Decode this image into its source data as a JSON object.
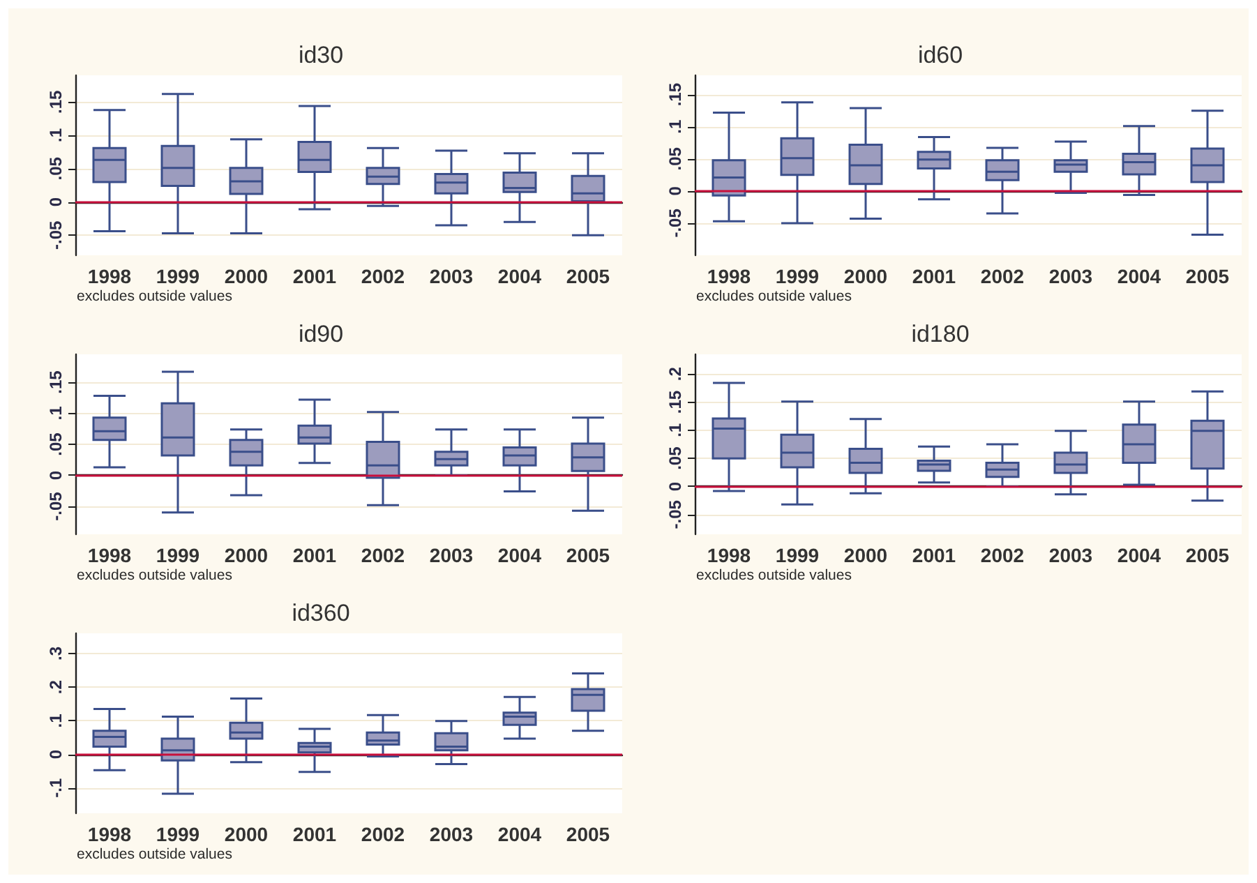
{
  "chart_data": [
    {
      "type": "box",
      "title": "id30",
      "categories": [
        "1998",
        "1999",
        "2000",
        "2001",
        "2002",
        "2003",
        "2004",
        "2005"
      ],
      "series": [
        {
          "color": "#9c9cbe",
          "boxes": [
            {
              "low": -0.044,
              "q1": 0.03,
              "median": 0.063,
              "q3": 0.081,
              "high": 0.138
            },
            {
              "low": -0.047,
              "q1": 0.024,
              "median": 0.051,
              "q3": 0.084,
              "high": 0.162
            },
            {
              "low": -0.047,
              "q1": 0.012,
              "median": 0.031,
              "q3": 0.051,
              "high": 0.094
            },
            {
              "low": -0.011,
              "q1": 0.045,
              "median": 0.063,
              "q3": 0.09,
              "high": 0.144
            },
            {
              "low": -0.006,
              "q1": 0.027,
              "median": 0.038,
              "q3": 0.051,
              "high": 0.081
            },
            {
              "low": -0.035,
              "q1": 0.013,
              "median": 0.029,
              "q3": 0.042,
              "high": 0.077
            },
            {
              "low": -0.03,
              "q1": 0.015,
              "median": 0.021,
              "q3": 0.044,
              "high": 0.073
            },
            {
              "low": -0.05,
              "q1": 0.001,
              "median": 0.013,
              "q3": 0.039,
              "high": 0.073
            }
          ]
        }
      ],
      "ylim": [
        -0.08,
        0.19
      ],
      "yticks": [
        {
          "value": -0.05,
          "label": "-.05"
        },
        {
          "value": 0,
          "label": "0"
        },
        {
          "value": 0.05,
          "label": ".05"
        },
        {
          "value": 0.1,
          "label": ".1"
        },
        {
          "value": 0.15,
          "label": ".15"
        }
      ],
      "grid": "y",
      "ref_lines": [
        {
          "axis": "y",
          "value": 0,
          "color": "#c8103c"
        }
      ],
      "annotations": [
        "excludes outside values"
      ]
    },
    {
      "type": "box",
      "title": "id60",
      "categories": [
        "1998",
        "1999",
        "2000",
        "2001",
        "2002",
        "2003",
        "2004",
        "2005"
      ],
      "series": [
        {
          "color": "#9c9cbe",
          "boxes": [
            {
              "low": -0.047,
              "q1": -0.007,
              "median": 0.021,
              "q3": 0.048,
              "high": 0.122
            },
            {
              "low": -0.05,
              "q1": 0.025,
              "median": 0.051,
              "q3": 0.082,
              "high": 0.138
            },
            {
              "low": -0.043,
              "q1": 0.011,
              "median": 0.04,
              "q3": 0.072,
              "high": 0.129
            },
            {
              "low": -0.013,
              "q1": 0.035,
              "median": 0.049,
              "q3": 0.061,
              "high": 0.084
            },
            {
              "low": -0.035,
              "q1": 0.017,
              "median": 0.03,
              "q3": 0.048,
              "high": 0.067
            },
            {
              "low": -0.003,
              "q1": 0.03,
              "median": 0.041,
              "q3": 0.048,
              "high": 0.077
            },
            {
              "low": -0.006,
              "q1": 0.026,
              "median": 0.045,
              "q3": 0.058,
              "high": 0.101
            },
            {
              "low": -0.068,
              "q1": 0.014,
              "median": 0.04,
              "q3": 0.066,
              "high": 0.125
            }
          ]
        }
      ],
      "ylim": [
        -0.1,
        0.18
      ],
      "yticks": [
        {
          "value": -0.05,
          "label": "-.05"
        },
        {
          "value": 0,
          "label": "0"
        },
        {
          "value": 0.05,
          "label": ".05"
        },
        {
          "value": 0.1,
          "label": ".1"
        },
        {
          "value": 0.15,
          "label": ".15"
        }
      ],
      "grid": "y",
      "ref_lines": [
        {
          "axis": "y",
          "value": 0,
          "color": "#c8103c"
        }
      ],
      "annotations": [
        "excludes outside values"
      ]
    },
    {
      "type": "box",
      "title": "id90",
      "categories": [
        "1998",
        "1999",
        "2000",
        "2001",
        "2002",
        "2003",
        "2004",
        "2005"
      ],
      "series": [
        {
          "color": "#9c9cbe",
          "boxes": [
            {
              "low": 0.013,
              "q1": 0.057,
              "median": 0.071,
              "q3": 0.093,
              "high": 0.128
            },
            {
              "low": -0.06,
              "q1": 0.032,
              "median": 0.061,
              "q3": 0.116,
              "high": 0.167
            },
            {
              "low": -0.032,
              "q1": 0.016,
              "median": 0.038,
              "q3": 0.057,
              "high": 0.074
            },
            {
              "low": 0.02,
              "q1": 0.051,
              "median": 0.061,
              "q3": 0.08,
              "high": 0.122
            },
            {
              "low": -0.048,
              "q1": -0.004,
              "median": 0.016,
              "q3": 0.054,
              "high": 0.102
            },
            {
              "low": 0.0,
              "q1": 0.016,
              "median": 0.026,
              "q3": 0.038,
              "high": 0.074
            },
            {
              "low": -0.026,
              "q1": 0.016,
              "median": 0.032,
              "q3": 0.045,
              "high": 0.074
            },
            {
              "low": -0.057,
              "q1": 0.007,
              "median": 0.029,
              "q3": 0.051,
              "high": 0.093
            }
          ]
        }
      ],
      "ylim": [
        -0.095,
        0.195
      ],
      "yticks": [
        {
          "value": -0.05,
          "label": "-.05"
        },
        {
          "value": 0,
          "label": "0"
        },
        {
          "value": 0.05,
          "label": ".05"
        },
        {
          "value": 0.1,
          "label": ".1"
        },
        {
          "value": 0.15,
          "label": ".15"
        }
      ],
      "grid": "y",
      "ref_lines": [
        {
          "axis": "y",
          "value": 0,
          "color": "#c8103c"
        }
      ],
      "annotations": [
        "excludes outside values"
      ]
    },
    {
      "type": "box",
      "title": "id180",
      "categories": [
        "1998",
        "1999",
        "2000",
        "2001",
        "2002",
        "2003",
        "2004",
        "2005"
      ],
      "series": [
        {
          "color": "#9c9cbe",
          "boxes": [
            {
              "low": -0.008,
              "q1": 0.05,
              "median": 0.103,
              "q3": 0.121,
              "high": 0.184
            },
            {
              "low": -0.032,
              "q1": 0.034,
              "median": 0.06,
              "q3": 0.092,
              "high": 0.151
            },
            {
              "low": -0.012,
              "q1": 0.024,
              "median": 0.042,
              "q3": 0.067,
              "high": 0.12
            },
            {
              "low": 0.007,
              "q1": 0.028,
              "median": 0.039,
              "q3": 0.046,
              "high": 0.071
            },
            {
              "low": 0.0,
              "q1": 0.017,
              "median": 0.03,
              "q3": 0.042,
              "high": 0.075
            },
            {
              "low": -0.014,
              "q1": 0.024,
              "median": 0.039,
              "q3": 0.06,
              "high": 0.099
            },
            {
              "low": 0.003,
              "q1": 0.042,
              "median": 0.075,
              "q3": 0.11,
              "high": 0.151
            },
            {
              "low": -0.025,
              "q1": 0.032,
              "median": 0.099,
              "q3": 0.117,
              "high": 0.169
            }
          ]
        }
      ],
      "ylim": [
        -0.085,
        0.235
      ],
      "yticks": [
        {
          "value": -0.05,
          "label": "-.05"
        },
        {
          "value": 0,
          "label": "0"
        },
        {
          "value": 0.05,
          "label": ".05"
        },
        {
          "value": 0.1,
          "label": ".1"
        },
        {
          "value": 0.15,
          "label": ".15"
        },
        {
          "value": 0.2,
          "label": ".2"
        }
      ],
      "grid": "y",
      "ref_lines": [
        {
          "axis": "y",
          "value": 0,
          "color": "#c8103c"
        }
      ],
      "annotations": [
        "excludes outside values"
      ]
    },
    {
      "type": "box",
      "title": "id360",
      "categories": [
        "1998",
        "1999",
        "2000",
        "2001",
        "2002",
        "2003",
        "2004",
        "2005"
      ],
      "series": [
        {
          "color": "#9c9cbe",
          "boxes": [
            {
              "low": -0.047,
              "q1": 0.023,
              "median": 0.052,
              "q3": 0.07,
              "high": 0.135
            },
            {
              "low": -0.117,
              "q1": -0.018,
              "median": 0.012,
              "q3": 0.047,
              "high": 0.112
            },
            {
              "low": -0.023,
              "q1": 0.047,
              "median": 0.065,
              "q3": 0.094,
              "high": 0.166
            },
            {
              "low": -0.052,
              "q1": 0.006,
              "median": 0.023,
              "q3": 0.034,
              "high": 0.076
            },
            {
              "low": -0.006,
              "q1": 0.029,
              "median": 0.041,
              "q3": 0.065,
              "high": 0.117
            },
            {
              "low": -0.029,
              "q1": 0.012,
              "median": 0.023,
              "q3": 0.063,
              "high": 0.099
            },
            {
              "low": 0.047,
              "q1": 0.088,
              "median": 0.112,
              "q3": 0.124,
              "high": 0.171
            },
            {
              "low": 0.07,
              "q1": 0.13,
              "median": 0.177,
              "q3": 0.194,
              "high": 0.241
            }
          ]
        }
      ],
      "ylim": [
        -0.175,
        0.36
      ],
      "yticks": [
        {
          "value": -0.1,
          "label": "-.1"
        },
        {
          "value": 0,
          "label": "0"
        },
        {
          "value": 0.1,
          "label": ".1"
        },
        {
          "value": 0.2,
          "label": ".2"
        },
        {
          "value": 0.3,
          "label": ".3"
        }
      ],
      "grid": "y",
      "ref_lines": [
        {
          "axis": "y",
          "value": 0,
          "color": "#c8103c"
        }
      ],
      "annotations": [
        "excludes outside values"
      ]
    }
  ]
}
